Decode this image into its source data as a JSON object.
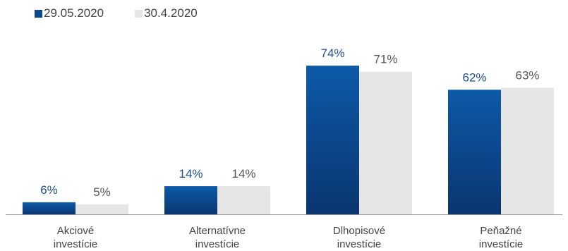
{
  "chart_data": {
    "type": "bar",
    "title": "",
    "xlabel": "",
    "ylabel": "",
    "ylim": [
      0,
      80
    ],
    "grid": false,
    "legend_position": "top-left",
    "categories": [
      [
        "Akciové",
        "investície"
      ],
      [
        "Alternatívne",
        "investície"
      ],
      [
        "Dlhopisové",
        "investície"
      ],
      [
        "Peňažné",
        "investície"
      ]
    ],
    "series": [
      {
        "name": "29.05.2020",
        "values": [
          6,
          14,
          74,
          62
        ],
        "labels": [
          "6%",
          "14%",
          "74%",
          "62%"
        ],
        "color": "#0a4a8c",
        "color_light": "#0d5aa8",
        "color_dark": "#0a3570",
        "label_color": "#1f4e8c"
      },
      {
        "name": "30.4.2020",
        "values": [
          5,
          14,
          71,
          63
        ],
        "labels": [
          "5%",
          "14%",
          "71%",
          "63%"
        ],
        "color": "#e6e6e6",
        "label_color": "#555555"
      }
    ]
  }
}
